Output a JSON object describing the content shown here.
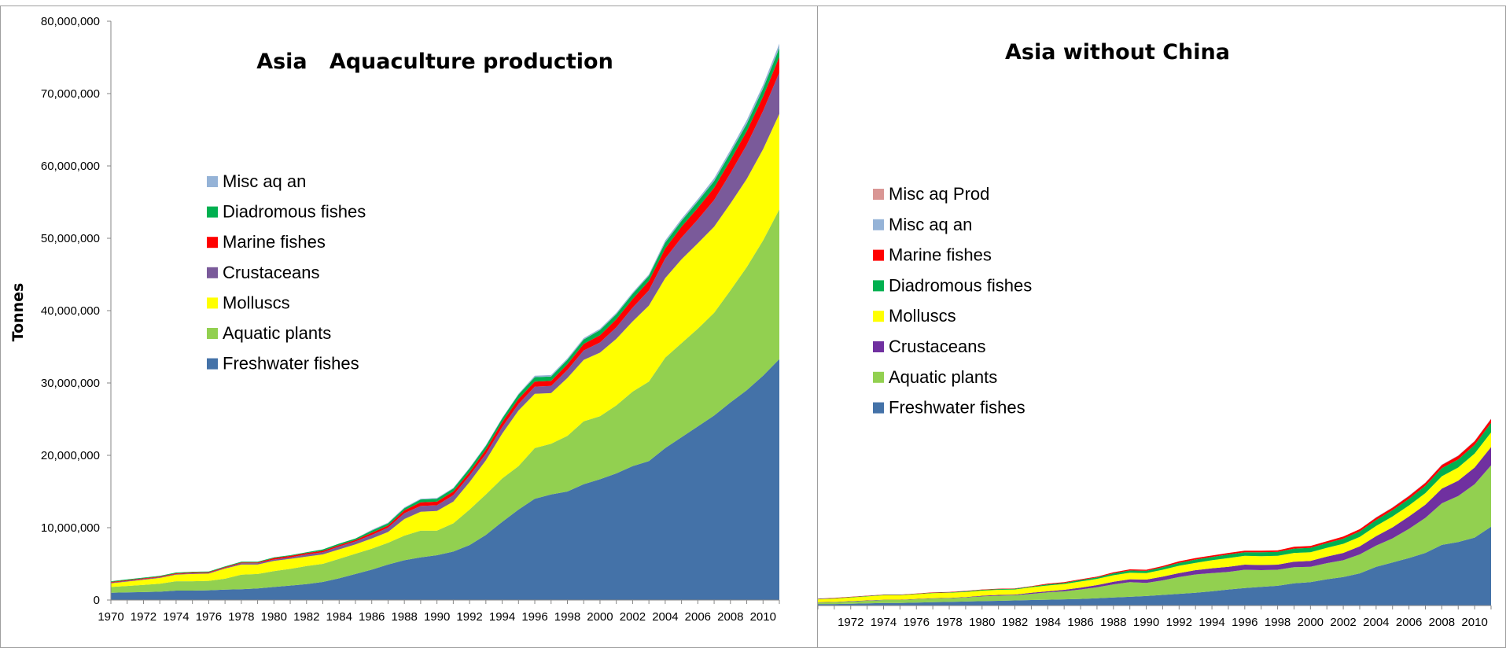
{
  "colors": {
    "Freshwater fishes": "#4472a8",
    "Aquatic plants": "#92d050",
    "Molluscs": "#ffff00",
    "Crustaceans": "#7030a0",
    "Crustaceans_left": "#7a5a9a",
    "Marine fishes": "#ff0000",
    "Diadromous fishes": "#00b050",
    "Misc aq an": "#95b3d7",
    "Misc aq Prod": "#d99694"
  },
  "chart_data": [
    {
      "type": "area",
      "stacked": true,
      "title": "Asia   Aquaculture production",
      "ylabel": "Tonnes",
      "xlabel": "",
      "ylim": [
        0,
        80000000
      ],
      "yticks": [
        "0",
        "10,000,000",
        "20,000,000",
        "30,000,000",
        "40,000,000",
        "50,000,000",
        "60,000,000",
        "70,000,000",
        "80,000,000"
      ],
      "x": [
        1970,
        1971,
        1972,
        1973,
        1974,
        1975,
        1976,
        1977,
        1978,
        1979,
        1980,
        1981,
        1982,
        1983,
        1984,
        1985,
        1986,
        1987,
        1988,
        1989,
        1990,
        1991,
        1992,
        1993,
        1994,
        1995,
        1996,
        1997,
        1998,
        1999,
        2000,
        2001,
        2002,
        2003,
        2004,
        2005,
        2006,
        2007,
        2008,
        2009,
        2010,
        2011
      ],
      "xticks": [
        "1970",
        "1972",
        "1974",
        "1976",
        "1978",
        "1980",
        "1982",
        "1984",
        "1986",
        "1988",
        "1990",
        "1992",
        "1994",
        "1996",
        "1998",
        "2000",
        "2002",
        "2004",
        "2006",
        "2008",
        "2010"
      ],
      "legend": [
        "Misc aq an",
        "Diadromous fishes",
        "Marine fishes",
        "Crustaceans",
        "Molluscs",
        "Aquatic plants",
        "Freshwater fishes"
      ],
      "legend_placement": "upper-left",
      "series": [
        {
          "name": "Freshwater fishes",
          "values": [
            1000000,
            1050000,
            1100000,
            1150000,
            1300000,
            1300000,
            1350000,
            1450000,
            1500000,
            1600000,
            1800000,
            2000000,
            2200000,
            2500000,
            3000000,
            3600000,
            4200000,
            4900000,
            5500000,
            5900000,
            6200000,
            6700000,
            7600000,
            9000000,
            10800000,
            12500000,
            14000000,
            14600000,
            15000000,
            16000000,
            16700000,
            17500000,
            18500000,
            19200000,
            21000000,
            22500000,
            24000000,
            25500000,
            27300000,
            29000000,
            31000000,
            33300000
          ]
        },
        {
          "name": "Aquatic plants",
          "values": [
            800000,
            900000,
            1000000,
            1100000,
            1300000,
            1300000,
            1300000,
            1500000,
            2000000,
            2000000,
            2200000,
            2300000,
            2500000,
            2500000,
            2700000,
            2800000,
            2900000,
            3000000,
            3400000,
            3700000,
            3400000,
            3900000,
            4900000,
            5600000,
            6000000,
            6000000,
            7000000,
            7000000,
            7700000,
            8700000,
            8700000,
            9400000,
            10300000,
            11000000,
            12500000,
            13000000,
            13500000,
            14200000,
            15500000,
            17000000,
            18700000,
            20700000
          ]
        },
        {
          "name": "Molluscs",
          "values": [
            500000,
            600000,
            700000,
            800000,
            900000,
            1000000,
            1000000,
            1400000,
            1400000,
            1300000,
            1400000,
            1400000,
            1300000,
            1300000,
            1300000,
            1300000,
            1400000,
            1500000,
            2300000,
            2600000,
            2700000,
            3000000,
            3800000,
            4700000,
            6200000,
            7700000,
            7500000,
            7000000,
            8000000,
            8500000,
            8800000,
            9200000,
            9700000,
            10500000,
            11000000,
            11600000,
            11800000,
            11900000,
            12000000,
            12200000,
            12600000,
            13200000
          ]
        },
        {
          "name": "Crustaceans",
          "values": [
            100000,
            100000,
            100000,
            100000,
            100000,
            100000,
            100000,
            100000,
            200000,
            200000,
            200000,
            200000,
            300000,
            300000,
            400000,
            400000,
            500000,
            600000,
            800000,
            800000,
            800000,
            900000,
            900000,
            900000,
            900000,
            900000,
            1000000,
            1000000,
            1100000,
            1300000,
            1400000,
            1600000,
            1900000,
            2100000,
            2700000,
            3000000,
            3300000,
            3700000,
            4200000,
            4700000,
            5300000,
            5700000
          ]
        },
        {
          "name": "Marine fishes",
          "values": [
            100000,
            100000,
            100000,
            100000,
            100000,
            100000,
            100000,
            100000,
            100000,
            100000,
            200000,
            200000,
            200000,
            200000,
            200000,
            200000,
            300000,
            300000,
            400000,
            500000,
            500000,
            500000,
            500000,
            600000,
            700000,
            700000,
            700000,
            700000,
            800000,
            900000,
            1000000,
            1100000,
            1200000,
            1300000,
            1400000,
            1500000,
            1600000,
            1700000,
            1800000,
            1900000,
            2000000,
            2200000
          ]
        },
        {
          "name": "Diadromous fishes",
          "values": [
            100000,
            100000,
            100000,
            100000,
            100000,
            100000,
            100000,
            100000,
            100000,
            100000,
            100000,
            100000,
            100000,
            200000,
            200000,
            200000,
            300000,
            300000,
            300000,
            400000,
            400000,
            400000,
            500000,
            500000,
            500000,
            600000,
            600000,
            600000,
            600000,
            600000,
            700000,
            700000,
            700000,
            700000,
            800000,
            800000,
            900000,
            900000,
            1000000,
            1000000,
            1100000,
            1200000
          ]
        },
        {
          "name": "Misc aq an",
          "values": [
            0,
            0,
            0,
            0,
            0,
            0,
            0,
            0,
            0,
            0,
            0,
            0,
            0,
            0,
            0,
            0,
            100000,
            100000,
            100000,
            100000,
            100000,
            100000,
            100000,
            100000,
            100000,
            100000,
            200000,
            200000,
            200000,
            200000,
            200000,
            200000,
            200000,
            200000,
            300000,
            300000,
            300000,
            400000,
            400000,
            500000,
            500000,
            600000
          ]
        }
      ]
    },
    {
      "type": "area",
      "stacked": true,
      "title": "Asia without China",
      "xlabel": "",
      "ylabel": "",
      "ylim": [
        0,
        80000000
      ],
      "x": [
        1970,
        1971,
        1972,
        1973,
        1974,
        1975,
        1976,
        1977,
        1978,
        1979,
        1980,
        1981,
        1982,
        1983,
        1984,
        1985,
        1986,
        1987,
        1988,
        1989,
        1990,
        1991,
        1992,
        1993,
        1994,
        1995,
        1996,
        1997,
        1998,
        1999,
        2000,
        2001,
        2002,
        2003,
        2004,
        2005,
        2006,
        2007,
        2008,
        2009,
        2010,
        2011
      ],
      "xticks": [
        "1972",
        "1974",
        "1976",
        "1978",
        "1980",
        "1982",
        "1984",
        "1986",
        "1988",
        "1990",
        "1992",
        "1994",
        "1996",
        "1998",
        "2000",
        "2002",
        "2004",
        "2006",
        "2008",
        "2010"
      ],
      "legend": [
        "Misc aq Prod",
        "Misc aq an",
        "Marine fishes",
        "Diadromous fishes",
        "Molluscs",
        "Crustaceans",
        "Aquatic plants",
        "Freshwater fishes"
      ],
      "legend_placement": "upper-left",
      "series": [
        {
          "name": "Freshwater fishes",
          "values": [
            200000,
            200000,
            250000,
            300000,
            350000,
            350000,
            400000,
            450000,
            500000,
            550000,
            600000,
            650000,
            700000,
            750000,
            800000,
            850000,
            900000,
            1000000,
            1100000,
            1200000,
            1300000,
            1450000,
            1600000,
            1750000,
            1950000,
            2200000,
            2400000,
            2550000,
            2700000,
            3050000,
            3200000,
            3600000,
            3900000,
            4400000,
            5300000,
            5900000,
            6500000,
            7200000,
            8300000,
            8700000,
            9300000,
            10800000
          ]
        },
        {
          "name": "Aquatic plants",
          "values": [
            200000,
            250000,
            300000,
            350000,
            400000,
            400000,
            450000,
            500000,
            500000,
            550000,
            650000,
            700000,
            700000,
            850000,
            1000000,
            1100000,
            1300000,
            1500000,
            1800000,
            2000000,
            1800000,
            2000000,
            2300000,
            2500000,
            2500000,
            2400000,
            2500000,
            2300000,
            2200000,
            2200000,
            2100000,
            2200000,
            2300000,
            2600000,
            2900000,
            3300000,
            4000000,
            4800000,
            5700000,
            6300000,
            7300000,
            8400000
          ]
        },
        {
          "name": "Crustaceans",
          "values": [
            50000,
            50000,
            50000,
            50000,
            50000,
            50000,
            50000,
            50000,
            50000,
            50000,
            100000,
            100000,
            100000,
            150000,
            150000,
            200000,
            250000,
            300000,
            350000,
            400000,
            450000,
            500000,
            550000,
            600000,
            650000,
            700000,
            700000,
            700000,
            700000,
            750000,
            800000,
            900000,
            1000000,
            1100000,
            1300000,
            1500000,
            1700000,
            1800000,
            2000000,
            2100000,
            2300000,
            2500000
          ]
        },
        {
          "name": "Molluscs",
          "values": [
            400000,
            450000,
            500000,
            550000,
            600000,
            600000,
            650000,
            700000,
            700000,
            700000,
            700000,
            700000,
            700000,
            750000,
            800000,
            800000,
            850000,
            850000,
            900000,
            900000,
            900000,
            950000,
            1000000,
            1000000,
            1100000,
            1200000,
            1200000,
            1200000,
            1200000,
            1200000,
            1200000,
            1200000,
            1250000,
            1300000,
            1400000,
            1500000,
            1500000,
            1600000,
            1700000,
            1800000,
            1900000,
            2000000
          ]
        },
        {
          "name": "Diadromous fishes",
          "values": [
            50000,
            50000,
            50000,
            50000,
            50000,
            50000,
            50000,
            50000,
            50000,
            100000,
            100000,
            100000,
            100000,
            100000,
            150000,
            150000,
            200000,
            200000,
            250000,
            300000,
            300000,
            350000,
            400000,
            450000,
            450000,
            500000,
            500000,
            550000,
            550000,
            600000,
            600000,
            650000,
            700000,
            750000,
            800000,
            850000,
            900000,
            1000000,
            1100000,
            1100000,
            1200000,
            1300000
          ]
        },
        {
          "name": "Marine fishes",
          "values": [
            50000,
            50000,
            50000,
            50000,
            50000,
            50000,
            50000,
            50000,
            50000,
            50000,
            50000,
            50000,
            50000,
            50000,
            100000,
            100000,
            100000,
            100000,
            150000,
            150000,
            150000,
            150000,
            200000,
            200000,
            200000,
            200000,
            200000,
            200000,
            200000,
            250000,
            250000,
            250000,
            300000,
            300000,
            350000,
            350000,
            400000,
            400000,
            450000,
            500000,
            500000,
            550000
          ]
        },
        {
          "name": "Misc aq an",
          "values": [
            0,
            0,
            0,
            0,
            0,
            0,
            0,
            0,
            0,
            0,
            0,
            0,
            0,
            0,
            0,
            0,
            0,
            0,
            0,
            0,
            0,
            0,
            0,
            0,
            0,
            0,
            0,
            0,
            0,
            0,
            0,
            0,
            0,
            0,
            50000,
            50000,
            50000,
            50000,
            50000,
            50000,
            50000,
            50000
          ]
        },
        {
          "name": "Misc aq Prod",
          "values": [
            0,
            0,
            0,
            0,
            0,
            0,
            0,
            0,
            0,
            0,
            0,
            0,
            0,
            0,
            0,
            0,
            0,
            0,
            0,
            0,
            0,
            0,
            0,
            0,
            0,
            0,
            0,
            0,
            0,
            0,
            0,
            0,
            0,
            0,
            0,
            0,
            0,
            0,
            0,
            0,
            0,
            0
          ]
        }
      ]
    }
  ]
}
